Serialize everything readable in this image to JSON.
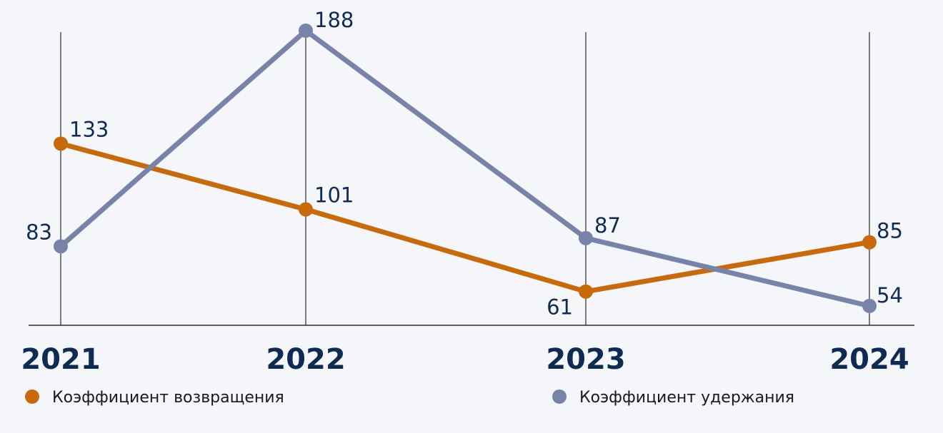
{
  "chart_data": {
    "type": "line",
    "categories": [
      "2021",
      "2022",
      "2023",
      "2024"
    ],
    "series": [
      {
        "name": "Коэффициент возвращения",
        "values": [
          133,
          101,
          61,
          85
        ],
        "color": "#c8690a"
      },
      {
        "name": "Коэффициент удержания",
        "values": [
          83,
          188,
          87,
          54
        ],
        "color": "#7883aa"
      }
    ],
    "grid": "vertical",
    "legend": "bottom"
  }
}
